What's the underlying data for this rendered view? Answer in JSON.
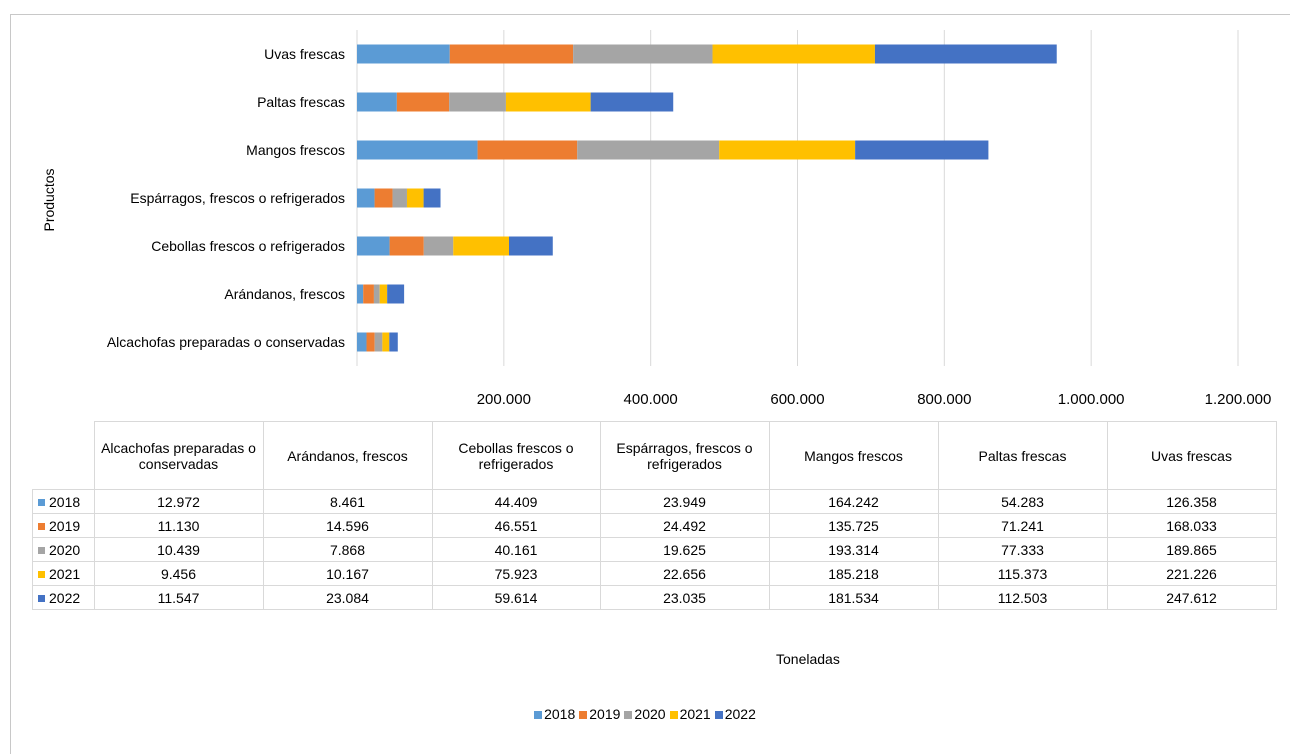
{
  "chart_data": {
    "type": "bar",
    "orientation": "horizontal",
    "stacked": true,
    "categories": [
      "Uvas frescas",
      "Paltas frescas",
      "Mangos frescos",
      "Espárragos, frescos o refrigerados",
      "Cebollas frescos o refrigerados",
      "Arándanos, frescos",
      "Alcachofas preparadas o conservadas"
    ],
    "series": [
      {
        "name": "2018",
        "color": "#5b9bd5",
        "values": [
          126358,
          54283,
          164242,
          23949,
          44409,
          8461,
          12972
        ]
      },
      {
        "name": "2019",
        "color": "#ed7d31",
        "values": [
          168033,
          71241,
          135725,
          24492,
          46551,
          14596,
          11130
        ]
      },
      {
        "name": "2020",
        "color": "#a5a5a5",
        "values": [
          189865,
          77333,
          193314,
          19625,
          40161,
          7868,
          10439
        ]
      },
      {
        "name": "2021",
        "color": "#ffc000",
        "values": [
          221226,
          115373,
          185218,
          22656,
          75923,
          10167,
          9456
        ]
      },
      {
        "name": "2022",
        "color": "#4472c4",
        "values": [
          247612,
          112503,
          181534,
          23035,
          59614,
          23084,
          11547
        ]
      }
    ],
    "xlim": [
      0,
      1200000
    ],
    "x_ticks": [
      "200.000",
      "400.000",
      "600.000",
      "800.000",
      "1.000.000",
      "1.200.000"
    ],
    "xlabel": "Toneladas",
    "ylabel": "Productos",
    "grid": "vertical",
    "legend": "bottom-center",
    "data_table": {
      "columns": [
        "Alcachofas preparadas o conservadas",
        "Arándanos, frescos",
        "Cebollas frescos o refrigerados",
        "Espárragos, frescos o refrigerados",
        "Mangos frescos",
        "Paltas frescas",
        "Uvas frescas"
      ],
      "rows": [
        {
          "year": "2018",
          "values": [
            "12.972",
            "8.461",
            "44.409",
            "23.949",
            "164.242",
            "54.283",
            "126.358"
          ]
        },
        {
          "year": "2019",
          "values": [
            "11.130",
            "14.596",
            "46.551",
            "24.492",
            "135.725",
            "71.241",
            "168.033"
          ]
        },
        {
          "year": "2020",
          "values": [
            "10.439",
            "7.868",
            "40.161",
            "19.625",
            "193.314",
            "77.333",
            "189.865"
          ]
        },
        {
          "year": "2021",
          "values": [
            "9.456",
            "10.167",
            "75.923",
            "22.656",
            "185.218",
            "115.373",
            "221.226"
          ]
        },
        {
          "year": "2022",
          "values": [
            "11.547",
            "23.084",
            "59.614",
            "23.035",
            "181.534",
            "112.503",
            "247.612"
          ]
        }
      ]
    }
  }
}
